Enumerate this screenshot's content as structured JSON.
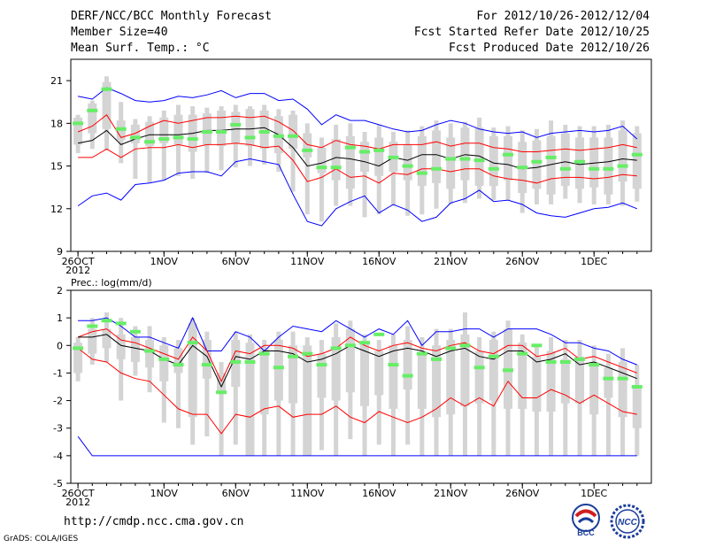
{
  "header": {
    "title": "DERF/NCC/BCC Monthly Forecast",
    "member_size": "Member Size=40",
    "variable": "Mean Surf. Temp.: °C",
    "period": "For 2012/10/26-2012/12/04",
    "started": "Fcst Started Refer Date 2012/10/25",
    "produced": "Fcst Produced Date 2012/10/26"
  },
  "footer": {
    "url": "http://cmdp.ncc.cma.gov.cn",
    "credit": "GrADS: COLA/IGES"
  },
  "logos": {
    "bcc_text": "BCC",
    "ncc_text": "NCC"
  },
  "colors": {
    "envelope": "#0000ff",
    "quantile": "#ff0000",
    "mean": "#000000",
    "observed": "#66ee66",
    "box": "#d4d4d4"
  },
  "chart_data": [
    {
      "type": "boxplot",
      "name": "temperature",
      "ylabel": "Mean Surf. Temp.: °C",
      "ylim": [
        9,
        22.5
      ],
      "yticks": [
        9,
        12,
        15,
        18,
        21
      ],
      "xlabels": [
        "26OCT",
        "1NOV",
        "6NOV",
        "11NOV",
        "16NOV",
        "21NOV",
        "26NOV",
        "1DEC"
      ],
      "xlabel_days": [
        1,
        7,
        12,
        17,
        22,
        27,
        32,
        37
      ],
      "year_label": "2012",
      "days": 40,
      "box_low": [
        16.5,
        17.3,
        17.6,
        16.8,
        16.6,
        16.4,
        16.6,
        16.5,
        16.0,
        16.5,
        16.4,
        16.6,
        16.4,
        16.2,
        15.9,
        16.2,
        15.6,
        14.5,
        14.0,
        13.4,
        14.6,
        14.3,
        14.6,
        14.0,
        13.6,
        13.8,
        13.4,
        14.0,
        13.6,
        13.6,
        14.0,
        13.1,
        13.4,
        13.0,
        13.6,
        13.4,
        13.5,
        13.0,
        13.9,
        13.4
      ],
      "box_high": [
        18.4,
        19.4,
        20.9,
        18.2,
        17.9,
        18.1,
        18.4,
        18.6,
        18.6,
        18.7,
        18.9,
        18.8,
        19.0,
        18.9,
        18.5,
        18.6,
        17.3,
        16.3,
        16.9,
        17.1,
        16.7,
        17.0,
        16.7,
        16.5,
        17.1,
        17.5,
        17.0,
        17.7,
        17.7,
        17.1,
        17.1,
        16.7,
        16.8,
        17.1,
        17.3,
        17.0,
        17.0,
        17.0,
        17.5,
        17.3
      ],
      "whisker_low": [
        15.9,
        16.2,
        16.1,
        15.2,
        14.1,
        13.8,
        14.0,
        14.3,
        14.1,
        14.5,
        14.7,
        14.9,
        15.0,
        15.1,
        14.6,
        13.2,
        11.6,
        11.1,
        12.2,
        12.2,
        11.4,
        11.6,
        12.2,
        11.5,
        11.6,
        12.0,
        12.3,
        12.4,
        12.7,
        12.6,
        12.6,
        11.7,
        12.3,
        12.3,
        12.7,
        12.4,
        12.3,
        12.3,
        12.2,
        12.5
      ],
      "whisker_high": [
        18.6,
        19.6,
        21.3,
        19.5,
        18.3,
        18.5,
        18.9,
        19.3,
        19.2,
        19.1,
        19.2,
        19.3,
        19.2,
        19.3,
        19.0,
        18.9,
        18.0,
        17.0,
        17.9,
        18.0,
        17.4,
        17.9,
        17.4,
        17.5,
        17.8,
        18.2,
        18.0,
        18.1,
        18.4,
        17.7,
        17.8,
        17.5,
        17.6,
        18.2,
        17.9,
        17.8,
        17.8,
        17.9,
        18.2,
        17.8
      ],
      "mean": [
        16.6,
        16.8,
        17.5,
        16.5,
        16.9,
        17.2,
        17.2,
        17.2,
        17.3,
        17.5,
        17.5,
        17.6,
        17.6,
        17.7,
        17.2,
        16.3,
        15.0,
        15.2,
        15.6,
        15.5,
        15.3,
        15.0,
        15.6,
        15.4,
        15.8,
        15.8,
        15.5,
        15.8,
        15.7,
        15.2,
        15.1,
        14.8,
        14.9,
        15.1,
        15.3,
        15.1,
        15.2,
        15.3,
        15.5,
        15.4
      ],
      "q_high": [
        17.4,
        17.8,
        18.6,
        17.0,
        17.3,
        17.8,
        18.2,
        18.0,
        18.2,
        18.4,
        18.4,
        18.5,
        18.4,
        18.5,
        18.1,
        17.5,
        16.5,
        16.3,
        16.8,
        16.5,
        16.4,
        16.2,
        16.5,
        16.5,
        16.5,
        16.7,
        16.4,
        16.6,
        16.6,
        16.3,
        16.2,
        16.0,
        16.0,
        16.1,
        16.2,
        16.1,
        16.2,
        16.3,
        16.5,
        16.3
      ],
      "q_low": [
        15.6,
        15.6,
        16.2,
        15.6,
        16.2,
        16.3,
        16.3,
        16.5,
        16.3,
        16.5,
        16.5,
        16.6,
        16.5,
        16.3,
        16.4,
        15.4,
        13.9,
        14.2,
        14.8,
        14.2,
        14.3,
        13.8,
        14.5,
        14.4,
        14.8,
        14.8,
        14.6,
        14.8,
        14.8,
        14.3,
        14.1,
        14.0,
        13.8,
        14.1,
        14.2,
        14.2,
        14.1,
        14.2,
        14.4,
        14.3
      ],
      "env_high": [
        19.9,
        19.7,
        20.5,
        20.1,
        19.6,
        19.5,
        19.6,
        19.9,
        19.8,
        20.0,
        20.3,
        19.8,
        20.1,
        20.1,
        19.6,
        19.7,
        19.0,
        17.9,
        18.6,
        18.2,
        18.2,
        17.9,
        17.6,
        17.4,
        17.5,
        17.9,
        18.2,
        18.0,
        17.6,
        17.4,
        17.3,
        17.4,
        17.0,
        17.3,
        17.4,
        17.5,
        17.4,
        17.5,
        17.8,
        16.9
      ],
      "env_low": [
        12.2,
        12.9,
        13.1,
        12.6,
        13.7,
        13.8,
        14.0,
        14.5,
        14.6,
        14.6,
        14.3,
        15.3,
        15.5,
        15.3,
        15.1,
        13.0,
        11.1,
        10.8,
        12.0,
        12.5,
        12.9,
        11.7,
        12.3,
        11.9,
        11.1,
        11.4,
        12.4,
        12.7,
        13.3,
        12.5,
        12.6,
        12.3,
        11.7,
        11.5,
        11.4,
        11.7,
        12.0,
        12.1,
        12.4,
        12.0
      ],
      "observed": [
        18.0,
        18.9,
        20.4,
        17.6,
        17.0,
        16.7,
        16.9,
        17.0,
        16.9,
        17.4,
        17.4,
        17.9,
        17.0,
        17.4,
        17.1,
        17.1,
        16.1,
        14.9,
        14.9,
        16.3,
        16.0,
        16.1,
        15.6,
        15.0,
        14.5,
        14.8,
        15.5,
        15.5,
        15.4,
        14.8,
        15.8,
        14.9,
        15.3,
        15.6,
        14.8,
        15.3,
        14.8,
        14.8,
        15.0,
        15.8
      ]
    },
    {
      "type": "boxplot",
      "name": "precipitation",
      "ylabel": "Prec.: log(mm/d)",
      "ylim": [
        -5,
        2
      ],
      "yticks": [
        -5,
        -4,
        -3,
        -2,
        -1,
        0,
        1,
        2
      ],
      "xlabels": [
        "26OCT",
        "1NOV",
        "6NOV",
        "11NOV",
        "16NOV",
        "21NOV",
        "26NOV",
        "1DEC"
      ],
      "xlabel_days": [
        1,
        7,
        12,
        17,
        22,
        27,
        32,
        37
      ],
      "year_label": "2012",
      "days": 40,
      "box_low": [
        -1.0,
        -0.3,
        -0.1,
        -0.5,
        -0.6,
        -0.8,
        -1.3,
        -1.0,
        -2.6,
        -1.2,
        -1.7,
        -1.5,
        -4.0,
        -2.5,
        -2.0,
        -2.1,
        -4.0,
        -1.9,
        -2.0,
        -1.7,
        -2.2,
        -1.8,
        -2.3,
        -1.6,
        -2.3,
        -2.6,
        -2.5,
        -2.2,
        -2.1,
        -2.0,
        -2.3,
        -2.3,
        -2.4,
        -2.4,
        -2.1,
        -2.1,
        -2.5,
        -1.9,
        -2.6,
        -3.0
      ],
      "box_high": [
        0.1,
        0.6,
        0.6,
        0.4,
        0.3,
        0.2,
        0.0,
        -0.1,
        0.8,
        0.2,
        -1.0,
        0.2,
        0.1,
        -0.1,
        0.2,
        0.0,
        0.0,
        -0.3,
        0.3,
        0.6,
        0.1,
        -0.2,
        0.0,
        0.2,
        -0.3,
        0.0,
        0.2,
        0.4,
        -0.2,
        0.2,
        0.6,
        0.1,
        -0.4,
        -0.2,
        -0.5,
        -0.4,
        -0.6,
        -0.8,
        -0.6,
        -1.5
      ],
      "whisker_low": [
        -1.3,
        -0.7,
        -0.6,
        -2.0,
        -1.1,
        -1.7,
        -2.8,
        -3.0,
        -3.6,
        -3.3,
        -4.0,
        -3.6,
        -4.0,
        -4.0,
        -4.0,
        -4.0,
        -4.0,
        -3.8,
        -4.0,
        -3.4,
        -4.0,
        -3.6,
        -4.0,
        -3.6,
        -4.0,
        -4.0,
        -4.0,
        -4.0,
        -4.0,
        -4.0,
        -4.0,
        -4.0,
        -4.0,
        -4.0,
        -4.0,
        -4.0,
        -4.0,
        -4.0,
        -4.0,
        -4.0
      ],
      "whisker_high": [
        0.3,
        1.0,
        1.2,
        1.0,
        0.7,
        0.7,
        0.3,
        0.2,
        1.0,
        0.5,
        -0.6,
        0.5,
        0.4,
        0.2,
        0.5,
        0.5,
        0.3,
        0.2,
        0.8,
        0.9,
        0.4,
        0.2,
        0.4,
        0.7,
        0.3,
        0.6,
        0.6,
        1.2,
        0.3,
        0.5,
        0.9,
        0.4,
        0.0,
        0.3,
        0.2,
        0.2,
        0.0,
        -0.3,
        -0.1,
        -0.7
      ],
      "mean": [
        0.3,
        0.3,
        0.4,
        0.0,
        -0.1,
        -0.2,
        -0.5,
        -0.7,
        0.0,
        -0.4,
        -1.5,
        -0.4,
        -0.5,
        -0.2,
        -0.2,
        -0.3,
        -0.6,
        -0.5,
        -0.3,
        0.0,
        -0.2,
        -0.4,
        -0.2,
        -0.1,
        -0.2,
        -0.4,
        -0.2,
        -0.1,
        -0.4,
        -0.5,
        -0.2,
        -0.2,
        -0.6,
        -0.5,
        -0.3,
        -0.7,
        -0.6,
        -0.8,
        -1.0,
        -1.2
      ],
      "q_high": [
        0.3,
        0.5,
        0.6,
        0.2,
        0.1,
        -0.1,
        -0.3,
        -0.5,
        0.3,
        -0.2,
        -1.3,
        -0.2,
        -0.3,
        0.0,
        0.0,
        -0.1,
        -0.4,
        -0.3,
        -0.1,
        0.3,
        0.0,
        -0.2,
        0.0,
        0.1,
        -0.1,
        -0.2,
        0.0,
        0.1,
        -0.2,
        -0.3,
        0.0,
        0.0,
        -0.4,
        -0.3,
        -0.1,
        -0.5,
        -0.4,
        -0.6,
        -0.8,
        -1.0
      ],
      "q_low": [
        -0.1,
        -0.5,
        -0.6,
        -1.0,
        -1.2,
        -1.3,
        -1.8,
        -2.3,
        -2.5,
        -2.5,
        -3.2,
        -2.5,
        -2.6,
        -2.3,
        -2.2,
        -2.6,
        -2.5,
        -2.5,
        -2.2,
        -2.6,
        -2.8,
        -2.4,
        -2.6,
        -2.8,
        -2.6,
        -2.3,
        -1.9,
        -2.2,
        -1.9,
        -2.2,
        -1.3,
        -1.9,
        -1.9,
        -1.6,
        -1.8,
        -2.1,
        -1.8,
        -2.1,
        -2.4,
        -2.5
      ],
      "env_high": [
        0.9,
        0.9,
        1.0,
        0.7,
        0.3,
        0.3,
        0.1,
        -0.1,
        1.0,
        -0.2,
        -0.2,
        0.5,
        0.3,
        -0.2,
        0.3,
        0.7,
        0.6,
        0.5,
        0.9,
        0.6,
        0.3,
        0.6,
        0.4,
        0.9,
        0.0,
        0.5,
        0.5,
        0.6,
        0.6,
        0.3,
        0.6,
        0.6,
        0.6,
        0.4,
        0.1,
        0.1,
        -0.1,
        -0.2,
        -0.5,
        -0.7
      ],
      "env_low": [
        -3.3,
        -4.0,
        -4.0,
        -4.0,
        -4.0,
        -4.0,
        -4.0,
        -4.0,
        -4.0,
        -4.0,
        -4.0,
        -4.0,
        -4.0,
        -4.0,
        -4.0,
        -4.0,
        -4.0,
        -4.0,
        -4.0,
        -4.0,
        -4.0,
        -4.0,
        -4.0,
        -4.0,
        -4.0,
        -4.0,
        -4.0,
        -4.0,
        -4.0,
        -4.0,
        -4.0,
        -4.0,
        -4.0,
        -4.0,
        -4.0,
        -4.0,
        -4.0,
        -4.0,
        -4.0,
        -4.0
      ],
      "observed": [
        -0.1,
        0.7,
        0.9,
        0.8,
        0.5,
        -0.2,
        -0.5,
        -0.7,
        0.1,
        -0.7,
        -1.7,
        -0.6,
        -0.6,
        -0.3,
        -0.8,
        -0.4,
        -0.3,
        -0.7,
        -0.1,
        0.0,
        0.1,
        0.4,
        -0.7,
        -1.1,
        -0.3,
        -0.5,
        -0.1,
        0.0,
        -0.8,
        -0.4,
        -0.9,
        -0.3,
        0.0,
        -0.6,
        -0.6,
        -0.5,
        -0.7,
        -1.2,
        -1.2,
        -1.5
      ]
    }
  ]
}
